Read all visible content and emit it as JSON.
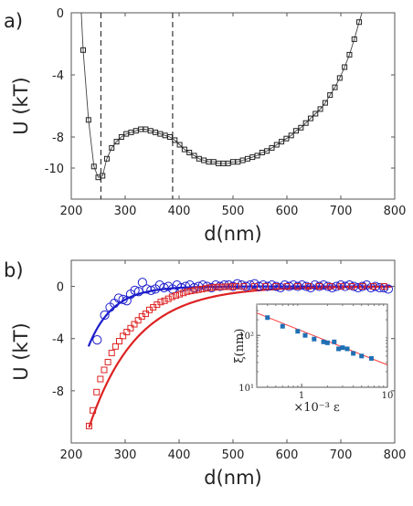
{
  "figure": {
    "panel_a_label": "a)",
    "panel_b_label": "b)"
  },
  "chart_data": [
    {
      "type": "scatter",
      "panel": "a",
      "xlabel": "d(nm)",
      "ylabel": "U (kT)",
      "xlim": [
        200,
        800
      ],
      "ylim": [
        -12,
        0
      ],
      "xticks": [
        200,
        300,
        400,
        500,
        600,
        700,
        800
      ],
      "yticks": [
        0,
        -4,
        -8,
        -10
      ],
      "vlines": [
        255,
        388
      ],
      "series": [
        {
          "marker": "square",
          "color": "#222222",
          "line": "thin",
          "x": [
            222,
            232,
            242,
            250,
            258,
            266,
            275,
            284,
            293,
            302,
            311,
            320,
            329,
            338,
            347,
            356,
            365,
            374,
            383,
            392,
            401,
            410,
            419,
            428,
            437,
            446,
            455,
            464,
            473,
            482,
            491,
            500,
            509,
            518,
            527,
            536,
            545,
            554,
            563,
            572,
            581,
            590,
            599,
            608,
            617,
            626,
            635,
            644,
            653,
            662,
            671,
            680,
            689,
            698,
            707,
            716,
            725,
            734
          ],
          "y": [
            -2.4,
            -6.9,
            -9.9,
            -10.6,
            -10.5,
            -9.4,
            -8.7,
            -8.3,
            -8.0,
            -7.8,
            -7.7,
            -7.6,
            -7.5,
            -7.5,
            -7.6,
            -7.7,
            -7.8,
            -7.9,
            -8.0,
            -8.2,
            -8.5,
            -8.8,
            -9.0,
            -9.2,
            -9.4,
            -9.5,
            -9.6,
            -9.6,
            -9.7,
            -9.7,
            -9.7,
            -9.6,
            -9.6,
            -9.5,
            -9.4,
            -9.3,
            -9.2,
            -9.0,
            -8.9,
            -8.7,
            -8.5,
            -8.3,
            -8.1,
            -7.9,
            -7.6,
            -7.4,
            -7.1,
            -6.8,
            -6.5,
            -6.2,
            -5.8,
            -5.3,
            -4.8,
            -4.2,
            -3.5,
            -2.7,
            -1.7,
            -0.6
          ]
        }
      ]
    },
    {
      "type": "scatter",
      "panel": "b",
      "xlabel": "d(nm)",
      "ylabel": "U (kT)",
      "xlim": [
        200,
        800
      ],
      "ylim": [
        -12,
        2
      ],
      "xticks": [
        200,
        300,
        400,
        500,
        600,
        700,
        800
      ],
      "yticks": [
        0,
        -4,
        -8
      ],
      "series": [
        {
          "marker": "circle",
          "color": "#1f1fcc",
          "x": [
            248,
            262,
            272,
            280,
            288,
            296,
            303,
            310,
            318,
            325,
            332,
            340,
            348,
            356,
            364,
            372,
            380,
            388,
            396,
            404,
            412,
            420,
            428,
            436,
            444,
            452,
            460,
            468,
            476,
            484,
            492,
            500,
            508,
            516,
            524,
            532,
            540,
            548,
            556,
            564,
            572,
            580,
            588,
            596,
            604,
            612,
            620,
            628,
            636,
            644,
            652,
            660,
            668,
            676,
            684,
            692,
            700,
            708,
            716,
            724,
            732,
            740,
            748,
            756,
            764,
            772,
            780,
            788
          ],
          "y": [
            -4.1,
            -2.2,
            -1.6,
            -1.3,
            -0.9,
            -1.0,
            -1.1,
            -0.6,
            -0.3,
            -0.4,
            0.3,
            -0.2,
            -0.3,
            -0.2,
            0.1,
            -0.1,
            0.0,
            -0.2,
            0.1,
            -0.1,
            0.0,
            0.1,
            -0.1,
            0.0,
            0.1,
            0.0,
            -0.1,
            0.1,
            0.0,
            0.1,
            0.1,
            0.0,
            0.2,
            0.1,
            0.0,
            0.1,
            0.2,
            0.0,
            0.1,
            0.0,
            0.1,
            0.0,
            -0.1,
            0.1,
            0.0,
            0.1,
            0.0,
            0.1,
            0.0,
            -0.1,
            0.1,
            0.0,
            0.1,
            0.0,
            -0.1,
            0.0,
            0.1,
            0.0,
            0.1,
            0.0,
            -0.1,
            0.0,
            0.1,
            -0.1,
            0.0,
            -0.1,
            -0.1,
            -0.2
          ]
        },
        {
          "marker": "square",
          "color": "#dd2222",
          "x": [
            233,
            240,
            247,
            254,
            261,
            268,
            275,
            282,
            289,
            296,
            303,
            310,
            317,
            324,
            331,
            338,
            345,
            352,
            359,
            366,
            373,
            380,
            387,
            394,
            401,
            408,
            415,
            422,
            429,
            436,
            443,
            450,
            457,
            464,
            471,
            478,
            485,
            492,
            499,
            506,
            520,
            540,
            560,
            580,
            600,
            620,
            640,
            660,
            680,
            700,
            720,
            740,
            760,
            780
          ],
          "y": [
            -10.7,
            -9.5,
            -8.1,
            -7.1,
            -6.4,
            -5.8,
            -5.1,
            -4.6,
            -4.2,
            -3.8,
            -3.5,
            -3.2,
            -2.9,
            -2.6,
            -2.3,
            -2.1,
            -1.8,
            -1.6,
            -1.4,
            -1.2,
            -1.1,
            -0.95,
            -0.8,
            -0.7,
            -0.6,
            -0.5,
            -0.4,
            -0.35,
            -0.3,
            -0.25,
            -0.2,
            -0.15,
            -0.1,
            -0.08,
            -0.05,
            -0.04,
            -0.03,
            -0.02,
            -0.01,
            0.0,
            0.0,
            0.0,
            0.0,
            0.0,
            0.0,
            0.0,
            0.0,
            0.0,
            0.0,
            0.0,
            0.0,
            0.0,
            0.0,
            0.0
          ]
        }
      ],
      "fits": [
        {
          "color": "#1f1fcc",
          "x0": 232,
          "y0": -4.6,
          "xi": 45
        },
        {
          "color": "#dd2222",
          "x0": 233,
          "y0": -10.8,
          "xi": 88
        }
      ],
      "inset": {
        "type": "scatter",
        "xscale": "log",
        "yscale": "log",
        "xlabel": "×10⁻³ ε",
        "ylabel": "ξ(nm)",
        "xlim": [
          0.3,
          10
        ],
        "ylim": [
          10,
          400
        ],
        "xticks": [
          {
            "v": 1,
            "label": "1"
          },
          {
            "v": 10,
            "label": "10"
          }
        ],
        "yticks": [
          {
            "v": 10,
            "label": "10¹"
          },
          {
            "v": 100,
            "label": "10²"
          }
        ],
        "marker_color": "#1f6fb5",
        "line_color": "#ff3b3b",
        "fit_line": {
          "x": [
            0.3,
            10
          ],
          "y": [
            270,
            27
          ]
        },
        "x": [
          0.4,
          0.6,
          0.9,
          1.1,
          1.4,
          1.8,
          2.0,
          2.4,
          2.7,
          3.0,
          3.4,
          4.0,
          5.0,
          6.5
        ],
        "y": [
          220,
          150,
          120,
          100,
          85,
          75,
          72,
          75,
          55,
          58,
          55,
          45,
          40,
          36
        ]
      }
    }
  ]
}
